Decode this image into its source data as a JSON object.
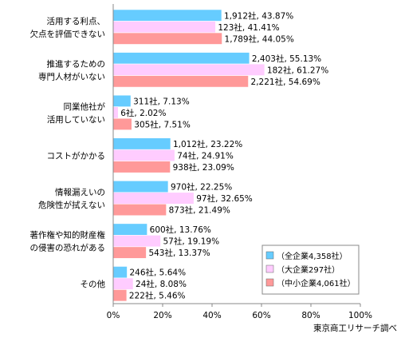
{
  "chart_data": {
    "type": "bar",
    "orientation": "horizontal",
    "categories": [
      [
        "活用する利点、",
        "欠点を評価できない"
      ],
      [
        "推進するための",
        "専門人材がいない"
      ],
      [
        "同業他社が",
        "活用していない"
      ],
      [
        "コストがかかる"
      ],
      [
        "情報漏えいの",
        "危険性が拭えない"
      ],
      [
        "著作権や知的財産権",
        "の侵害の恐れがある"
      ],
      [
        "その他"
      ]
    ],
    "series": [
      {
        "name": "（全企業4,358社）",
        "color": "#66ccff",
        "values": [
          43.87,
          55.13,
          7.13,
          23.22,
          22.25,
          13.76,
          5.64
        ],
        "labels": [
          "1,912社, 43.87%",
          "2,403社, 55.13%",
          "311社, 7.13%",
          "1,012社, 23.22%",
          "970社, 22.25%",
          "600社, 13.76%",
          "246社, 5.64%"
        ]
      },
      {
        "name": "（大企業297社）",
        "color": "#ffccff",
        "values": [
          41.41,
          61.27,
          2.02,
          24.91,
          32.65,
          19.19,
          8.08
        ],
        "labels": [
          "123社, 41.41%",
          "182社, 61.27%",
          "6社, 2.02%",
          "74社, 24.91%",
          "97社, 32.65%",
          "57社, 19.19%",
          "24社, 8.08%"
        ]
      },
      {
        "name": "（中小企業4,061社）",
        "color": "#ff9999",
        "values": [
          44.05,
          54.69,
          7.51,
          23.09,
          21.49,
          13.37,
          5.46
        ],
        "labels": [
          "1,789社, 44.05%",
          "2,221社, 54.69%",
          "305社, 7.51%",
          "938社, 23.09%",
          "873社, 21.49%",
          "543社, 13.37%",
          "222社, 5.46%"
        ]
      }
    ],
    "xlim": [
      0,
      100
    ],
    "xticks": [
      "0%",
      "20%",
      "40%",
      "60%",
      "80%",
      "100%"
    ],
    "grid": false,
    "legend_position": "bottom-right",
    "source": "東京商工リサーチ調べ"
  }
}
